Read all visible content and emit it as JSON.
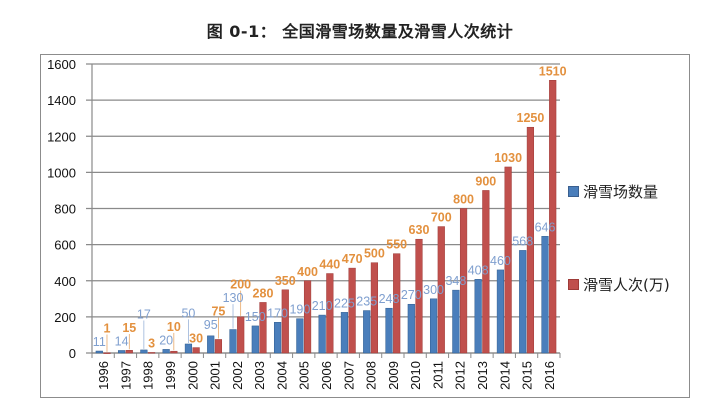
{
  "chart_data": {
    "type": "bar",
    "title": "图 0-1： 全国滑雪场数量及滑雪人次统计",
    "xlabel": "",
    "ylabel": "",
    "ylim": [
      0,
      1600
    ],
    "yticks": [
      0,
      200,
      400,
      600,
      800,
      1000,
      1200,
      1400,
      1600
    ],
    "grid": true,
    "legend_position": "right",
    "categories": [
      "1996",
      "1997",
      "1998",
      "1999",
      "2000",
      "2001",
      "2002",
      "2003",
      "2004",
      "2005",
      "2006",
      "2007",
      "2008",
      "2009",
      "2010",
      "2011",
      "2012",
      "2013",
      "2014",
      "2015",
      "2016"
    ],
    "series": [
      {
        "name": "滑雪场数量",
        "color": "#4a7ebb",
        "label_color": "#7f9fcf",
        "values": [
          11,
          14,
          17,
          20,
          50,
          95,
          130,
          150,
          170,
          190,
          210,
          225,
          235,
          248,
          270,
          300,
          348,
          408,
          460,
          568,
          646
        ]
      },
      {
        "name": "滑雪人次(万)",
        "color": "#c0504d",
        "label_color": "#e3913f",
        "values": [
          1,
          15,
          3,
          10,
          30,
          75,
          200,
          280,
          350,
          400,
          440,
          470,
          500,
          550,
          630,
          700,
          800,
          900,
          1030,
          1250,
          1510
        ]
      }
    ]
  }
}
